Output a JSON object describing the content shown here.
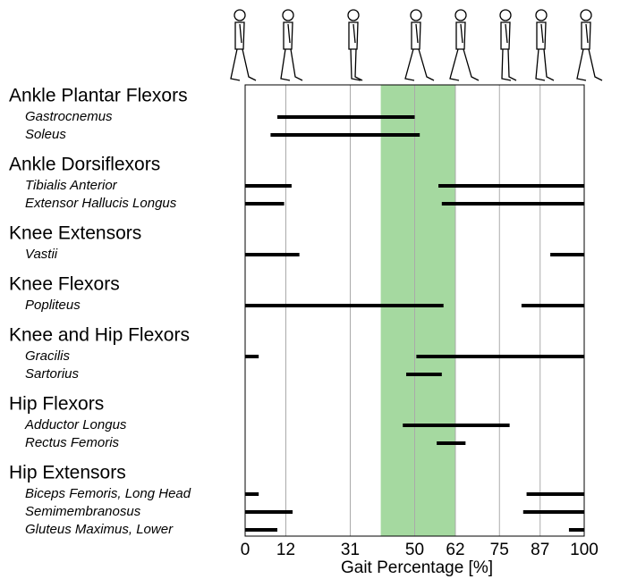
{
  "chart_data": {
    "type": "range-bar",
    "x_label": "Gait Percentage [%]",
    "xlim": [
      0,
      100
    ],
    "xticks": [
      0,
      12,
      31,
      50,
      62,
      75,
      87,
      100
    ],
    "grid": true,
    "color": "#000000",
    "shade": {
      "range": [
        40,
        62
      ],
      "color": "#a5d9a0"
    },
    "groups": [
      {
        "name": "Ankle Plantar Flexors",
        "muscles": [
          {
            "name": "Gastrocnemus",
            "segments": [
              [
                9.5,
                50
              ]
            ]
          },
          {
            "name": "Soleus",
            "segments": [
              [
                7.5,
                51.5
              ]
            ]
          }
        ]
      },
      {
        "name": "Ankle Dorsiflexors",
        "muscles": [
          {
            "name": "Tibialis Anterior",
            "segments": [
              [
                0,
                13.7
              ],
              [
                57,
                100
              ]
            ]
          },
          {
            "name": "Extensor Hallucis Longus",
            "segments": [
              [
                0,
                11.5
              ],
              [
                58,
                100
              ]
            ]
          }
        ]
      },
      {
        "name": "Knee Extensors",
        "muscles": [
          {
            "name": "Vastii",
            "segments": [
              [
                0,
                16
              ],
              [
                90,
                100
              ]
            ]
          }
        ]
      },
      {
        "name": "Knee Flexors",
        "muscles": [
          {
            "name": "Popliteus",
            "segments": [
              [
                0,
                58.5
              ],
              [
                81.5,
                100
              ]
            ]
          }
        ]
      },
      {
        "name": "Knee and Hip Flexors",
        "muscles": [
          {
            "name": "Gracilis",
            "segments": [
              [
                0,
                4
              ],
              [
                50.5,
                100
              ]
            ]
          },
          {
            "name": "Sartorius",
            "segments": [
              [
                47.5,
                58
              ]
            ]
          }
        ]
      },
      {
        "name": "Hip Flexors",
        "muscles": [
          {
            "name": "Adductor Longus",
            "segments": [
              [
                46.5,
                78
              ]
            ]
          },
          {
            "name": "Rectus Femoris",
            "segments": [
              [
                56.5,
                65
              ]
            ]
          }
        ]
      },
      {
        "name": "Hip Extensors",
        "muscles": [
          {
            "name": "Biceps Femoris, Long Head",
            "segments": [
              [
                0,
                4
              ],
              [
                83,
                100
              ]
            ]
          },
          {
            "name": "Semimembranosus",
            "segments": [
              [
                0,
                14
              ],
              [
                82,
                100
              ]
            ]
          },
          {
            "name": "Gluteus Maximus, Lower",
            "segments": [
              [
                0,
                9.5
              ],
              [
                95.5,
                100
              ]
            ]
          }
        ]
      }
    ]
  }
}
